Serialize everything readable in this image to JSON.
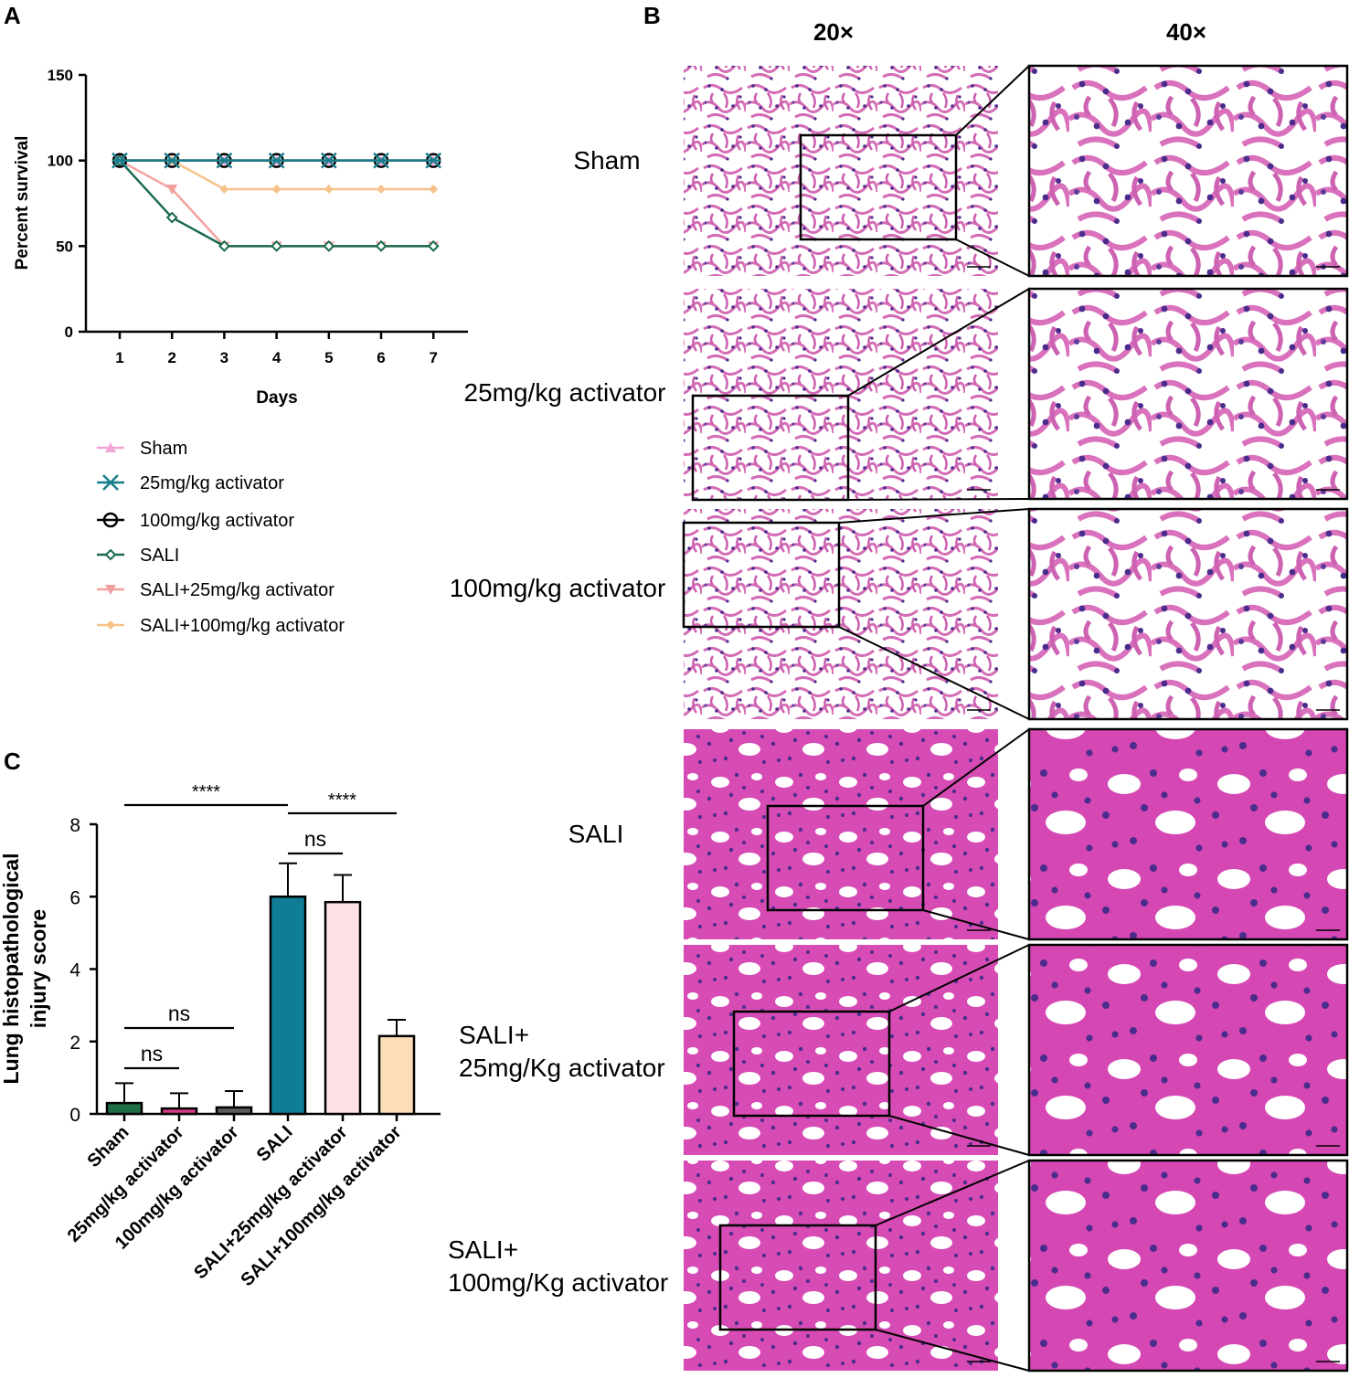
{
  "panel_labels": {
    "a": "A",
    "b": "B",
    "c": "C"
  },
  "chart_data": [
    {
      "type": "line",
      "panel": "A",
      "xlabel": "Days",
      "ylabel": "Percent survival",
      "x": [
        1,
        2,
        3,
        4,
        5,
        6,
        7
      ],
      "x_ticks": [
        "1",
        "2",
        "3",
        "4",
        "5",
        "6",
        "7"
      ],
      "y_ticks": [
        "0",
        "50",
        "100",
        "150"
      ],
      "ylim": [
        0,
        150
      ],
      "legend_placement": "bottom",
      "series": [
        {
          "name": "Sham",
          "values": [
            100,
            100,
            100,
            100,
            100,
            100,
            100
          ],
          "color": "#f2a6d8",
          "marker": "triangle-up"
        },
        {
          "name": "25mg/kg activator",
          "values": [
            100,
            100,
            100,
            100,
            100,
            100,
            100
          ],
          "color": "#1a7f8c",
          "marker": "cross"
        },
        {
          "name": "100mg/kg activator",
          "values": [
            100,
            100,
            100,
            100,
            100,
            100,
            100
          ],
          "color": "#000000",
          "marker": "circle-open"
        },
        {
          "name": "SALI",
          "values": [
            100,
            66.7,
            50,
            50,
            50,
            50,
            50
          ],
          "color": "#1a6b4f",
          "marker": "diamond-open"
        },
        {
          "name": "SALI+25mg/kg activator",
          "values": [
            100,
            83.3,
            50,
            50,
            50,
            50,
            50
          ],
          "color": "#f2a0a0",
          "marker": "triangle-down"
        },
        {
          "name": "SALI+100mg/kg activator",
          "values": [
            100,
            100,
            83.3,
            83.3,
            83.3,
            83.3,
            83.3
          ],
          "color": "#f5c38a",
          "marker": "diamond"
        }
      ]
    },
    {
      "type": "bar",
      "panel": "C",
      "ylabel": "Lung histopathological\ninjury score",
      "categories": [
        "Sham",
        "25mg/kg activator",
        "100mg/kg activator",
        "SALI",
        "SALI+25mg/kg activator",
        "SALI+100mg/kg activator"
      ],
      "values": [
        0.3,
        0.15,
        0.18,
        6.0,
        5.85,
        2.15
      ],
      "errors": [
        0.55,
        0.42,
        0.45,
        0.92,
        0.75,
        0.45
      ],
      "colors": [
        "#1e6e45",
        "#d63a84",
        "#5b5b5b",
        "#107d96",
        "#fde0e6",
        "#fbddb8"
      ],
      "y_ticks": [
        "0",
        "2",
        "4",
        "6",
        "8"
      ],
      "ylim": [
        0,
        8
      ],
      "significance": [
        {
          "from": 0,
          "to": 1,
          "label": "ns"
        },
        {
          "from": 0,
          "to": 2,
          "label": "ns"
        },
        {
          "from": 0,
          "to": 3,
          "label": "****"
        },
        {
          "from": 3,
          "to": 4,
          "label": "ns"
        },
        {
          "from": 3,
          "to": 5,
          "label": "****"
        }
      ]
    }
  ],
  "histology": {
    "column_headers": [
      "20×",
      "40×"
    ],
    "rows": [
      {
        "label": "Sham",
        "tone": "pale"
      },
      {
        "label": "25mg/kg activator",
        "tone": "pale"
      },
      {
        "label": "100mg/kg activator",
        "tone": "pale"
      },
      {
        "label": "SALI",
        "tone": "dense"
      },
      {
        "label_lines": [
          "SALI+",
          "25mg/Kg activator"
        ],
        "tone": "dense"
      },
      {
        "label_lines": [
          "SALI+",
          "100mg/Kg activator"
        ],
        "tone": "mixed"
      }
    ],
    "colors": {
      "tissue_pale": "#d56ab8",
      "tissue_dense": "#d246b2",
      "nuclei": "#4a2c8c",
      "blood": "#e8507a"
    }
  }
}
